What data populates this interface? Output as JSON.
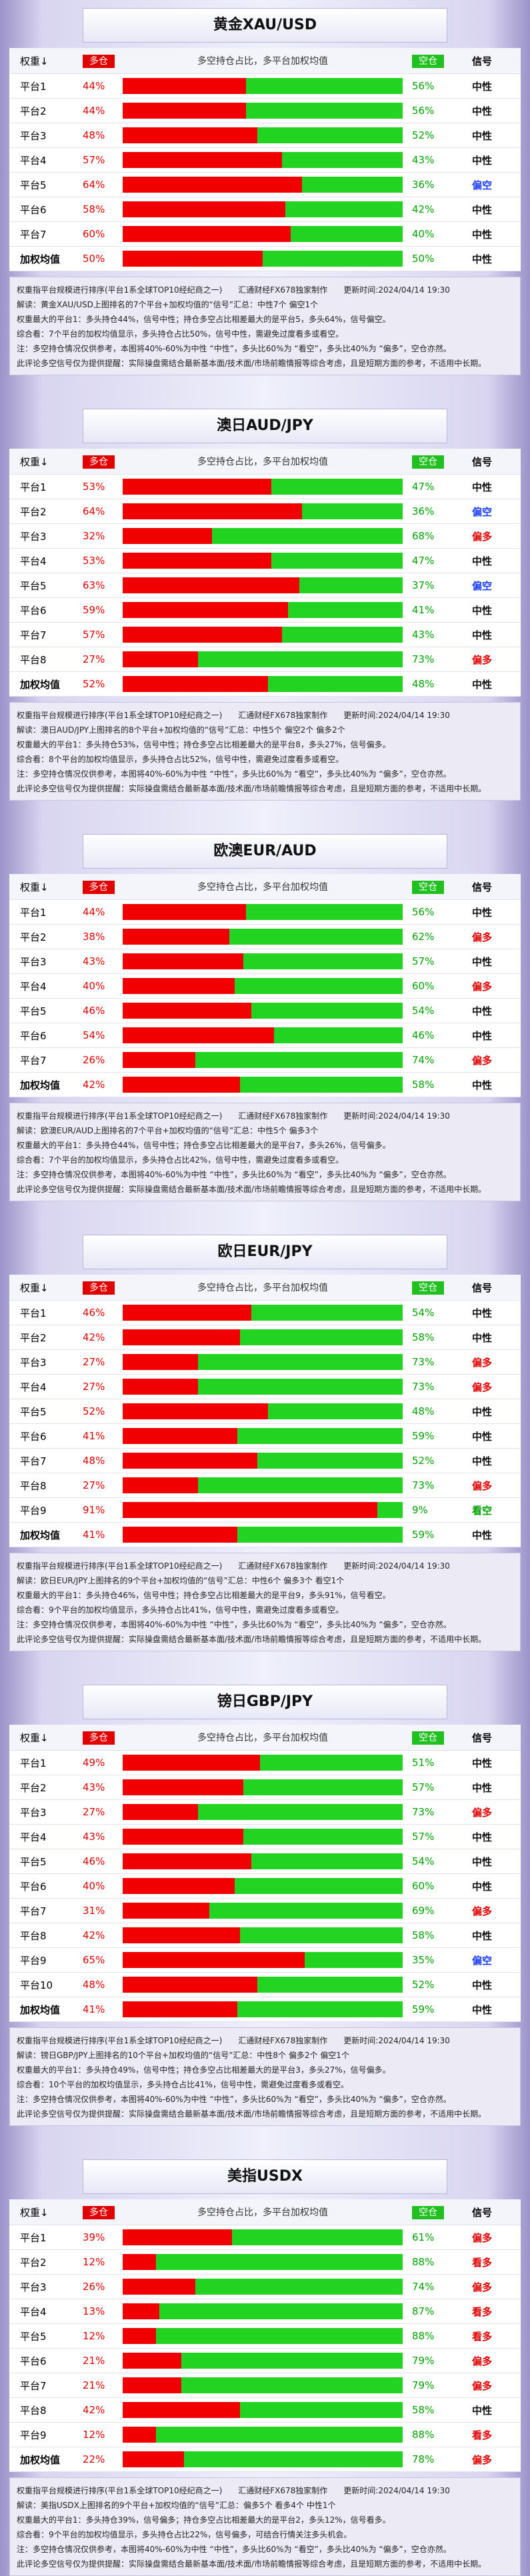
{
  "header": {
    "weight": "权重↓",
    "long": "多仓",
    "center": "多空持仓占比，多平台加权均值",
    "short": "空仓",
    "signal": "信号"
  },
  "source": "权重指平台规模进行排序(平台1系全球TOP10经纪商之一)　　汇通财经FX678独家制作　　更新时间:2024/04/14 19:30",
  "note": "注：多空持仓情况仅供参考，本图将40%-60%为中性 “中性”，多头比60%为 “看空”，多头比40%为 “偏多”，空仓亦然。",
  "disclaimer": "此评论多空信号仅为提供提醒：实际操盘需结合最新基本面/技术面/市场前瞻情报等综合考虑，且是短期方面的参考，不适用中长期。",
  "panels": [
    {
      "title": "黄金XAU/USD",
      "rows": [
        {
          "name": "平台1",
          "long": 44,
          "long_label": "44%",
          "short": 56,
          "short_label": "56%",
          "signal": "中性"
        },
        {
          "name": "平台2",
          "long": 44,
          "long_label": "44%",
          "short": 56,
          "short_label": "56%",
          "signal": "中性"
        },
        {
          "name": "平台3",
          "long": 48,
          "long_label": "48%",
          "short": 52,
          "short_label": "52%",
          "signal": "中性"
        },
        {
          "name": "平台4",
          "long": 57,
          "long_label": "57%",
          "short": 43,
          "short_label": "43%",
          "signal": "中性"
        },
        {
          "name": "平台5",
          "long": 64,
          "long_label": "64%",
          "short": 36,
          "short_label": "36%",
          "signal": "偏空"
        },
        {
          "name": "平台6",
          "long": 58,
          "long_label": "58%",
          "short": 42,
          "short_label": "42%",
          "signal": "中性"
        },
        {
          "name": "平台7",
          "long": 60,
          "long_label": "60%",
          "short": 40,
          "short_label": "40%",
          "signal": "中性"
        },
        {
          "name": "加权均值",
          "long": 50,
          "long_label": "50%",
          "short": 50,
          "short_label": "50%",
          "signal": "中性"
        }
      ],
      "interp": "解读：黄金XAU/USD上图排名的7个平台+加权均值的“信号”汇总：中性7个 偏空1个",
      "max": "权重最大的平台1：多头持仓44%，信号中性；持仓多空占比相差最大的是平台5，多头64%，信号偏空。",
      "summary": "综合看：7个平台的加权均值显示，多头持仓占比50%，信号中性，需避免过度看多或看空。"
    },
    {
      "title": "澳日AUD/JPY",
      "rows": [
        {
          "name": "平台1",
          "long": 53,
          "long_label": "53%",
          "short": 47,
          "short_label": "47%",
          "signal": "中性"
        },
        {
          "name": "平台2",
          "long": 64,
          "long_label": "64%",
          "short": 36,
          "short_label": "36%",
          "signal": "偏空"
        },
        {
          "name": "平台3",
          "long": 32,
          "long_label": "32%",
          "short": 68,
          "short_label": "68%",
          "signal": "偏多"
        },
        {
          "name": "平台4",
          "long": 53,
          "long_label": "53%",
          "short": 47,
          "short_label": "47%",
          "signal": "中性"
        },
        {
          "name": "平台5",
          "long": 63,
          "long_label": "63%",
          "short": 37,
          "short_label": "37%",
          "signal": "偏空"
        },
        {
          "name": "平台6",
          "long": 59,
          "long_label": "59%",
          "short": 41,
          "short_label": "41%",
          "signal": "中性"
        },
        {
          "name": "平台7",
          "long": 57,
          "long_label": "57%",
          "short": 43,
          "short_label": "43%",
          "signal": "中性"
        },
        {
          "name": "平台8",
          "long": 27,
          "long_label": "27%",
          "short": 73,
          "short_label": "73%",
          "signal": "偏多"
        },
        {
          "name": "加权均值",
          "long": 52,
          "long_label": "52%",
          "short": 48,
          "short_label": "48%",
          "signal": "中性"
        }
      ],
      "interp": "解读：澳日AUD/JPY上图排名的8个平台+加权均值的“信号”汇总：中性5个 偏空2个 偏多2个",
      "max": "权重最大的平台1：多头持仓53%，信号中性；持仓多空占比相差最大的是平台8，多头27%，信号偏多。",
      "summary": "综合看：8个平台的加权均值显示，多头持仓占比52%，信号中性，需避免过度看多或看空。"
    },
    {
      "title": "欧澳EUR/AUD",
      "rows": [
        {
          "name": "平台1",
          "long": 44,
          "long_label": "44%",
          "short": 56,
          "short_label": "56%",
          "signal": "中性"
        },
        {
          "name": "平台2",
          "long": 38,
          "long_label": "38%",
          "short": 62,
          "short_label": "62%",
          "signal": "偏多"
        },
        {
          "name": "平台3",
          "long": 43,
          "long_label": "43%",
          "short": 57,
          "short_label": "57%",
          "signal": "中性"
        },
        {
          "name": "平台4",
          "long": 40,
          "long_label": "40%",
          "short": 60,
          "short_label": "60%",
          "signal": "偏多"
        },
        {
          "name": "平台5",
          "long": 46,
          "long_label": "46%",
          "short": 54,
          "short_label": "54%",
          "signal": "中性"
        },
        {
          "name": "平台6",
          "long": 54,
          "long_label": "54%",
          "short": 46,
          "short_label": "46%",
          "signal": "中性"
        },
        {
          "name": "平台7",
          "long": 26,
          "long_label": "26%",
          "short": 74,
          "short_label": "74%",
          "signal": "偏多"
        },
        {
          "name": "加权均值",
          "long": 42,
          "long_label": "42%",
          "short": 58,
          "short_label": "58%",
          "signal": "中性"
        }
      ],
      "interp": "解读：欧澳EUR/AUD上图排名的7个平台+加权均值的“信号”汇总：中性5个 偏多3个",
      "max": "权重最大的平台1：多头持仓44%，信号中性；持仓多空占比相差最大的是平台7，多头26%，信号偏多。",
      "summary": "综合看：7个平台的加权均值显示，多头持仓占比42%，信号中性，需避免过度看多或看空。"
    },
    {
      "title": "欧日EUR/JPY",
      "rows": [
        {
          "name": "平台1",
          "long": 46,
          "long_label": "46%",
          "short": 54,
          "short_label": "54%",
          "signal": "中性"
        },
        {
          "name": "平台2",
          "long": 42,
          "long_label": "42%",
          "short": 58,
          "short_label": "58%",
          "signal": "中性"
        },
        {
          "name": "平台3",
          "long": 27,
          "long_label": "27%",
          "short": 73,
          "short_label": "73%",
          "signal": "偏多"
        },
        {
          "name": "平台4",
          "long": 27,
          "long_label": "27%",
          "short": 73,
          "short_label": "73%",
          "signal": "偏多"
        },
        {
          "name": "平台5",
          "long": 52,
          "long_label": "52%",
          "short": 48,
          "short_label": "48%",
          "signal": "中性"
        },
        {
          "name": "平台6",
          "long": 41,
          "long_label": "41%",
          "short": 59,
          "short_label": "59%",
          "signal": "中性"
        },
        {
          "name": "平台7",
          "long": 48,
          "long_label": "48%",
          "short": 52,
          "short_label": "52%",
          "signal": "中性"
        },
        {
          "name": "平台8",
          "long": 27,
          "long_label": "27%",
          "short": 73,
          "short_label": "73%",
          "signal": "偏多"
        },
        {
          "name": "平台9",
          "long": 91,
          "long_label": "91%",
          "short": 9,
          "short_label": "9%",
          "signal": "看空"
        },
        {
          "name": "加权均值",
          "long": 41,
          "long_label": "41%",
          "short": 59,
          "short_label": "59%",
          "signal": "中性"
        }
      ],
      "interp": "解读：欧日EUR/JPY上图排名的9个平台+加权均值的“信号”汇总：中性6个 偏多3个 看空1个",
      "max": "权重最大的平台1：多头持仓46%，信号中性；持仓多空占比相差最大的是平台9，多头91%，信号看空。",
      "summary": "综合看：9个平台的加权均值显示，多头持仓占比41%，信号中性，需避免过度看多或看空。"
    },
    {
      "title": "镑日GBP/JPY",
      "rows": [
        {
          "name": "平台1",
          "long": 49,
          "long_label": "49%",
          "short": 51,
          "short_label": "51%",
          "signal": "中性"
        },
        {
          "name": "平台2",
          "long": 43,
          "long_label": "43%",
          "short": 57,
          "short_label": "57%",
          "signal": "中性"
        },
        {
          "name": "平台3",
          "long": 27,
          "long_label": "27%",
          "short": 73,
          "short_label": "73%",
          "signal": "偏多"
        },
        {
          "name": "平台4",
          "long": 43,
          "long_label": "43%",
          "short": 57,
          "short_label": "57%",
          "signal": "中性"
        },
        {
          "name": "平台5",
          "long": 46,
          "long_label": "46%",
          "short": 54,
          "short_label": "54%",
          "signal": "中性"
        },
        {
          "name": "平台6",
          "long": 40,
          "long_label": "40%",
          "short": 60,
          "short_label": "60%",
          "signal": "中性"
        },
        {
          "name": "平台7",
          "long": 31,
          "long_label": "31%",
          "short": 69,
          "short_label": "69%",
          "signal": "偏多"
        },
        {
          "name": "平台8",
          "long": 42,
          "long_label": "42%",
          "short": 58,
          "short_label": "58%",
          "signal": "中性"
        },
        {
          "name": "平台9",
          "long": 65,
          "long_label": "65%",
          "short": 35,
          "short_label": "35%",
          "signal": "偏空"
        },
        {
          "name": "平台10",
          "long": 48,
          "long_label": "48%",
          "short": 52,
          "short_label": "52%",
          "signal": "中性"
        },
        {
          "name": "加权均值",
          "long": 41,
          "long_label": "41%",
          "short": 59,
          "short_label": "59%",
          "signal": "中性"
        }
      ],
      "interp": "解读：镑日GBP/JPY上图排名的10个平台+加权均值的“信号”汇总：中性8个 偏多2个 偏空1个",
      "max": "权重最大的平台1：多头持仓49%，信号中性；持仓多空占比相差最大的是平台3，多头27%，信号偏多。",
      "summary": "综合看：10个平台的加权均值显示，多头持仓占比41%，信号中性，需避免过度看多或看空。"
    },
    {
      "title": "美指USDX",
      "rows": [
        {
          "name": "平台1",
          "long": 39,
          "long_label": "39%",
          "short": 61,
          "short_label": "61%",
          "signal": "偏多"
        },
        {
          "name": "平台2",
          "long": 12,
          "long_label": "12%",
          "short": 88,
          "short_label": "88%",
          "signal": "看多"
        },
        {
          "name": "平台3",
          "long": 26,
          "long_label": "26%",
          "short": 74,
          "short_label": "74%",
          "signal": "偏多"
        },
        {
          "name": "平台4",
          "long": 13,
          "long_label": "13%",
          "short": 87,
          "short_label": "87%",
          "signal": "看多"
        },
        {
          "name": "平台5",
          "long": 12,
          "long_label": "12%",
          "short": 88,
          "short_label": "88%",
          "signal": "看多"
        },
        {
          "name": "平台6",
          "long": 21,
          "long_label": "21%",
          "short": 79,
          "short_label": "79%",
          "signal": "偏多"
        },
        {
          "name": "平台7",
          "long": 21,
          "long_label": "21%",
          "short": 79,
          "short_label": "79%",
          "signal": "偏多"
        },
        {
          "name": "平台8",
          "long": 42,
          "long_label": "42%",
          "short": 58,
          "short_label": "58%",
          "signal": "中性"
        },
        {
          "name": "平台9",
          "long": 12,
          "long_label": "12%",
          "short": 88,
          "short_label": "88%",
          "signal": "看多"
        },
        {
          "name": "加权均值",
          "long": 22,
          "long_label": "22%",
          "short": 78,
          "short_label": "78%",
          "signal": "偏多"
        }
      ],
      "interp": "解读：美指USDX上图排名的9个平台+加权均值的“信号”汇总：偏多5个 看多4个 中性1个",
      "max": "权重最大的平台1：多头持仓39%，信号偏多；持仓多空占比相差最大的是平台2，多头12%，信号看多。",
      "summary": "综合看：9个平台的加权均值显示，多头持仓占比22%，信号偏多，可结合行情关注多头机会。"
    }
  ]
}
